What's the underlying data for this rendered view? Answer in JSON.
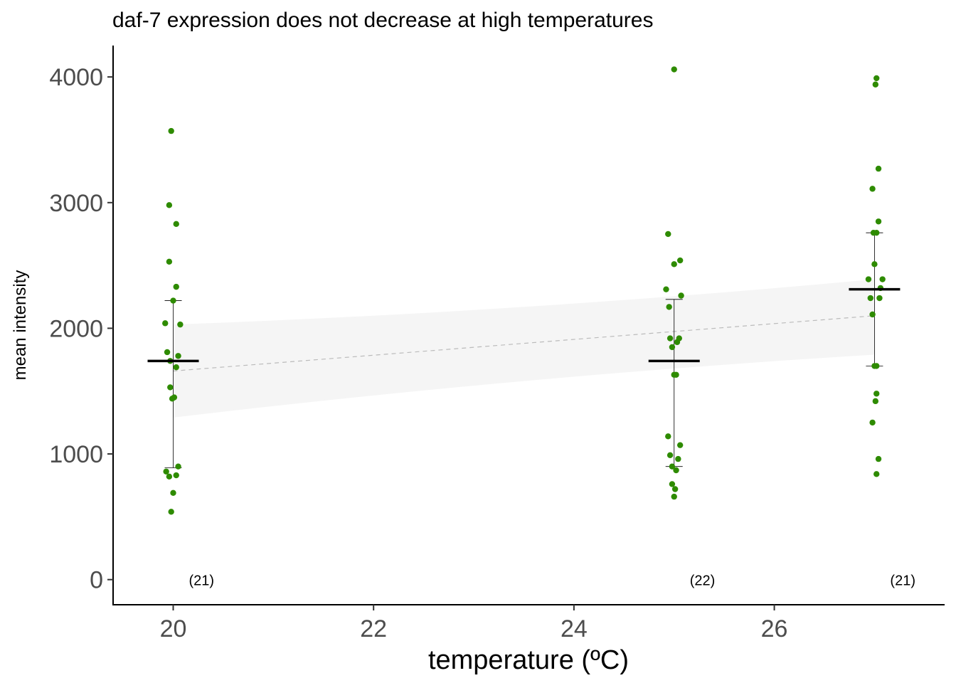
{
  "chart_data": {
    "type": "scatter",
    "title": "daf-7 expression does not decrease at high temperatures",
    "xlabel": "temperature (ºC)",
    "ylabel": "mean intensity",
    "xlim": [
      19.4,
      27.7
    ],
    "ylim": [
      -200,
      4250
    ],
    "xticks": [
      20,
      22,
      24,
      26
    ],
    "yticks": [
      0,
      1000,
      2000,
      3000,
      4000
    ],
    "grid": false,
    "colors": {
      "points": "#2e8b00",
      "mean": "#000000",
      "errorbar": "#000000",
      "fit_line": "#bbbbbb",
      "ribbon": "#f2f2f2"
    },
    "groups": [
      {
        "x": 20,
        "n_label": "(21)",
        "mean": 1740,
        "error_low": 890,
        "error_high": 2220,
        "points": [
          {
            "x": 19.98,
            "y": 3570
          },
          {
            "x": 19.96,
            "y": 2980
          },
          {
            "x": 20.03,
            "y": 2830
          },
          {
            "x": 19.96,
            "y": 2530
          },
          {
            "x": 20.03,
            "y": 2330
          },
          {
            "x": 20.0,
            "y": 2220
          },
          {
            "x": 19.92,
            "y": 2040
          },
          {
            "x": 20.07,
            "y": 2030
          },
          {
            "x": 19.94,
            "y": 1810
          },
          {
            "x": 20.05,
            "y": 1780
          },
          {
            "x": 19.97,
            "y": 1740
          },
          {
            "x": 20.03,
            "y": 1690
          },
          {
            "x": 19.97,
            "y": 1530
          },
          {
            "x": 19.99,
            "y": 1440
          },
          {
            "x": 20.01,
            "y": 1450
          },
          {
            "x": 20.05,
            "y": 900
          },
          {
            "x": 19.93,
            "y": 860
          },
          {
            "x": 19.96,
            "y": 820
          },
          {
            "x": 20.03,
            "y": 830
          },
          {
            "x": 20.0,
            "y": 690
          },
          {
            "x": 19.98,
            "y": 540
          }
        ]
      },
      {
        "x": 25,
        "n_label": "(22)",
        "mean": 1740,
        "error_low": 900,
        "error_high": 2230,
        "points": [
          {
            "x": 25.0,
            "y": 4060
          },
          {
            "x": 24.94,
            "y": 2750
          },
          {
            "x": 25.06,
            "y": 2540
          },
          {
            "x": 25.0,
            "y": 2510
          },
          {
            "x": 24.92,
            "y": 2310
          },
          {
            "x": 25.07,
            "y": 2260
          },
          {
            "x": 24.95,
            "y": 2170
          },
          {
            "x": 24.96,
            "y": 1920
          },
          {
            "x": 25.05,
            "y": 1920
          },
          {
            "x": 25.03,
            "y": 1890
          },
          {
            "x": 24.98,
            "y": 1850
          },
          {
            "x": 25.0,
            "y": 1630
          },
          {
            "x": 25.02,
            "y": 1630
          },
          {
            "x": 24.94,
            "y": 1140
          },
          {
            "x": 25.06,
            "y": 1070
          },
          {
            "x": 24.96,
            "y": 990
          },
          {
            "x": 25.04,
            "y": 960
          },
          {
            "x": 24.98,
            "y": 900
          },
          {
            "x": 25.02,
            "y": 870
          },
          {
            "x": 24.98,
            "y": 760
          },
          {
            "x": 25.01,
            "y": 720
          },
          {
            "x": 25.0,
            "y": 660
          }
        ]
      },
      {
        "x": 27,
        "n_label": "(21)",
        "mean": 2310,
        "error_low": 1700,
        "error_high": 2760,
        "points": [
          {
            "x": 27.02,
            "y": 3990
          },
          {
            "x": 27.01,
            "y": 3940
          },
          {
            "x": 27.04,
            "y": 3270
          },
          {
            "x": 26.98,
            "y": 3110
          },
          {
            "x": 27.04,
            "y": 2850
          },
          {
            "x": 26.99,
            "y": 2760
          },
          {
            "x": 27.02,
            "y": 2760
          },
          {
            "x": 27.0,
            "y": 2510
          },
          {
            "x": 26.94,
            "y": 2390
          },
          {
            "x": 27.08,
            "y": 2390
          },
          {
            "x": 27.06,
            "y": 2320
          },
          {
            "x": 26.96,
            "y": 2240
          },
          {
            "x": 27.05,
            "y": 2240
          },
          {
            "x": 26.98,
            "y": 2110
          },
          {
            "x": 27.0,
            "y": 1700
          },
          {
            "x": 27.02,
            "y": 1700
          },
          {
            "x": 27.02,
            "y": 1480
          },
          {
            "x": 27.01,
            "y": 1420
          },
          {
            "x": 26.98,
            "y": 1250
          },
          {
            "x": 27.04,
            "y": 960
          },
          {
            "x": 27.02,
            "y": 840
          }
        ]
      }
    ],
    "fit": {
      "style": "dashed",
      "x": [
        20,
        27
      ],
      "y": [
        1660,
        2100
      ],
      "ribbon_low": [
        1290,
        1790
      ],
      "ribbon_high": [
        2030,
        2390
      ]
    }
  }
}
